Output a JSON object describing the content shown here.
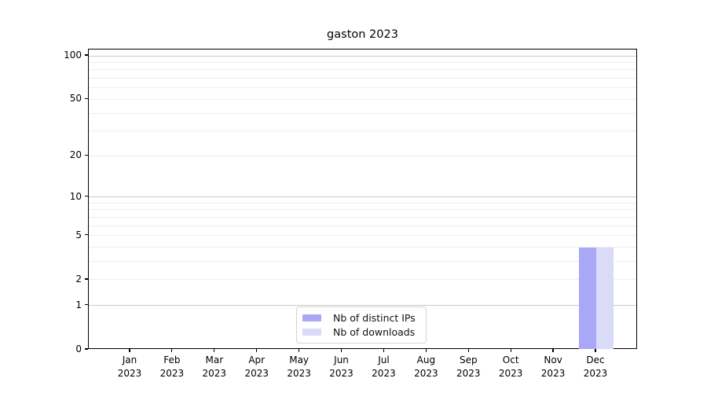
{
  "figure": {
    "title": "gaston 2023"
  },
  "chart_data": {
    "type": "bar",
    "title": "gaston 2023",
    "months": [
      "Jan",
      "Feb",
      "Mar",
      "Apr",
      "May",
      "Jun",
      "Jul",
      "Aug",
      "Sep",
      "Oct",
      "Nov",
      "Dec"
    ],
    "year": "2023",
    "x": [
      "Jan 2023",
      "Feb 2023",
      "Mar 2023",
      "Apr 2023",
      "May 2023",
      "Jun 2023",
      "Jul 2023",
      "Aug 2023",
      "Sep 2023",
      "Oct 2023",
      "Nov 2023",
      "Dec 2023"
    ],
    "series": [
      {
        "name": "Nb of distinct IPs",
        "color": "#a8a8f7",
        "values": [
          0,
          0,
          0,
          0,
          0,
          0,
          0,
          0,
          0,
          0,
          0,
          4
        ]
      },
      {
        "name": "Nb of downloads",
        "color": "#dadaf9",
        "values": [
          0,
          0,
          0,
          0,
          0,
          0,
          0,
          0,
          0,
          0,
          0,
          4
        ]
      }
    ],
    "y_scale": "log1p",
    "y_ticks": [
      0,
      1,
      2,
      5,
      10,
      20,
      50,
      100
    ],
    "y_minor_gridlines": [
      2,
      3,
      4,
      5,
      6,
      7,
      8,
      9,
      20,
      30,
      40,
      50,
      60,
      70,
      80,
      90
    ],
    "y_major_gridlines": [
      1,
      10,
      100
    ],
    "ylim": [
      0,
      110
    ],
    "grid": "horizontal",
    "legend_position": "lower center inside plot"
  },
  "colors": {
    "background": "#ffffff",
    "axis": "#000000",
    "major_grid": "#c9c9c9",
    "minor_grid": "#eeeeee",
    "legend_border": "#d2d2d2"
  }
}
